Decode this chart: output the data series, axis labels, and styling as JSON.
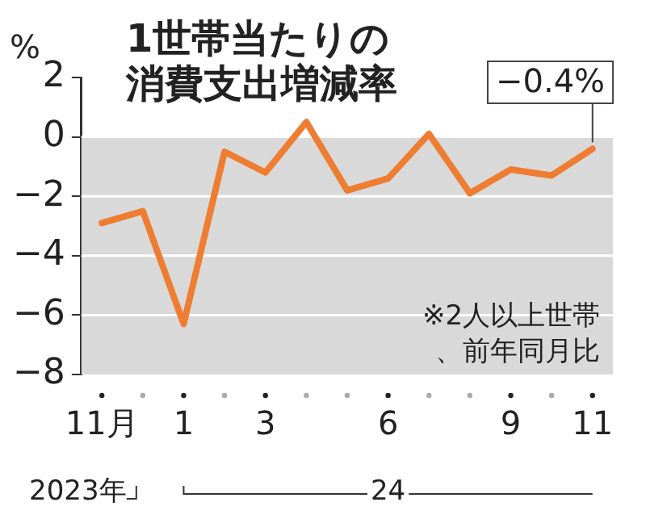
{
  "chart_data": {
    "type": "line",
    "title": "1世帯当たりの消費支出増減率",
    "ylabel": "%",
    "categories": [
      "11月",
      null,
      "1",
      null,
      "3",
      null,
      null,
      "6",
      null,
      null,
      "9",
      null,
      "11"
    ],
    "series": [
      {
        "color": "#ee7d31",
        "values": [
          -2.9,
          -2.5,
          -6.3,
          -0.5,
          -1.2,
          0.5,
          -1.8,
          -1.4,
          0.1,
          -1.9,
          -1.1,
          -1.3,
          -0.4
        ],
        "value_labels": [
          null,
          null,
          null,
          null,
          null,
          null,
          null,
          null,
          null,
          null,
          null,
          null,
          "−0.4%"
        ]
      }
    ],
    "ylim": [
      -8,
      2
    ],
    "yticks": [
      {
        "value": -8,
        "label": "−8"
      },
      {
        "value": -6,
        "label": "−6"
      },
      {
        "value": -4,
        "label": "−4"
      },
      {
        "value": -2,
        "label": "−2"
      },
      0,
      2
    ],
    "bands": [
      {
        "axis": "y",
        "from": -8,
        "to": 0,
        "color": "#d9d9d9"
      }
    ],
    "grid": "y",
    "marker": "none",
    "line_style": "solid",
    "legend": false,
    "annotations": [
      "※2人以上世帯、前年同月比",
      "2023年",
      "24"
    ]
  }
}
